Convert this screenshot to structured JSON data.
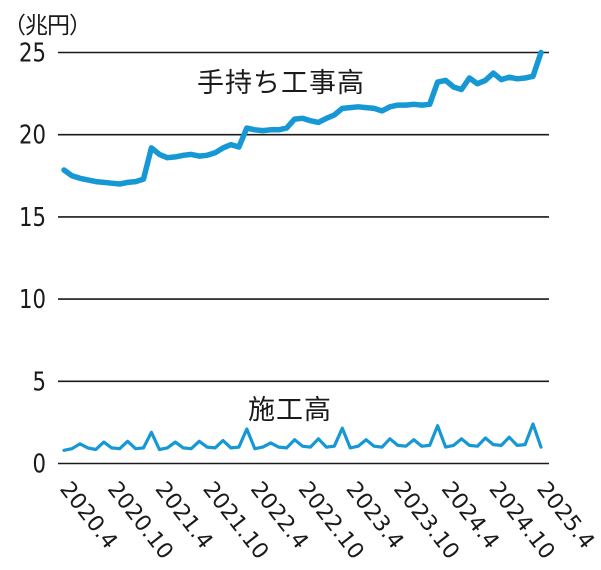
{
  "colors": {
    "line": "#1598d4",
    "axis": "#1a1a1a"
  },
  "chart_data": {
    "type": "line",
    "title": "",
    "ylabel": "（兆円）",
    "ylim": [
      0,
      25
    ],
    "yticks": [
      0,
      5,
      10,
      15,
      20,
      25
    ],
    "grid": true,
    "x_frequency": "monthly",
    "x_range": "2020.4 - 2025.4",
    "x_tick_interval_months": 6,
    "x_tick_labels": [
      "2020.4",
      "2020.10",
      "2021.4",
      "2021.10",
      "2022.4",
      "2022.10",
      "2023.4",
      "2023.10",
      "2024.4",
      "2024.10",
      "2025.4"
    ],
    "legend_position": "inline-annotation",
    "series": [
      {
        "name": "手持ち工事高",
        "values": [
          17.85,
          17.5,
          17.35,
          17.25,
          17.15,
          17.1,
          17.05,
          17.0,
          17.1,
          17.15,
          17.3,
          19.2,
          18.8,
          18.6,
          18.65,
          18.75,
          18.8,
          18.7,
          18.75,
          18.9,
          19.2,
          19.4,
          19.25,
          20.4,
          20.3,
          20.25,
          20.3,
          20.3,
          20.4,
          20.95,
          21.0,
          20.85,
          20.75,
          21.0,
          21.2,
          21.6,
          21.65,
          21.7,
          21.65,
          21.6,
          21.45,
          21.7,
          21.8,
          21.8,
          21.85,
          21.8,
          21.85,
          23.2,
          23.3,
          22.9,
          22.75,
          23.45,
          23.1,
          23.3,
          23.75,
          23.35,
          23.5,
          23.4,
          23.45,
          23.55,
          25.0
        ]
      },
      {
        "name": "施工高",
        "values": [
          0.8,
          0.9,
          1.2,
          0.95,
          0.85,
          1.3,
          0.95,
          0.9,
          1.35,
          0.9,
          0.95,
          1.9,
          0.85,
          0.95,
          1.3,
          0.95,
          0.9,
          1.35,
          1.0,
          0.95,
          1.4,
          0.95,
          1.0,
          2.1,
          0.9,
          1.0,
          1.25,
          1.0,
          0.95,
          1.45,
          1.05,
          1.0,
          1.5,
          1.0,
          1.05,
          2.15,
          0.95,
          1.05,
          1.45,
          1.05,
          1.0,
          1.5,
          1.1,
          1.05,
          1.45,
          1.05,
          1.1,
          2.3,
          1.0,
          1.1,
          1.5,
          1.1,
          1.05,
          1.55,
          1.15,
          1.1,
          1.6,
          1.1,
          1.15,
          2.4,
          1.0
        ]
      }
    ]
  }
}
